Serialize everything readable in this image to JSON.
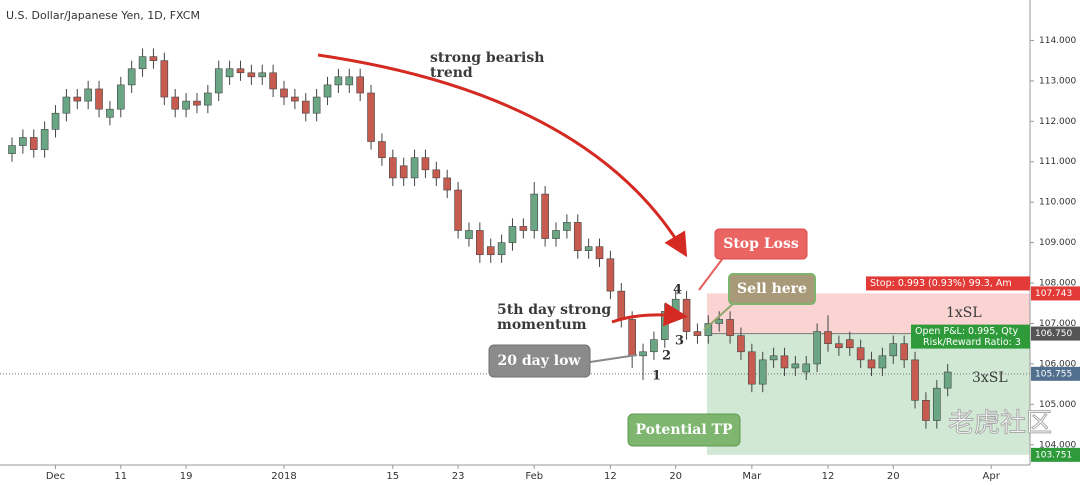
{
  "chart_data": {
    "type": "candlestick",
    "title": "U.S. Dollar/Japanese Yen, 1D, FXCM",
    "categories": [
      null,
      null,
      null,
      null,
      "Dec",
      null,
      null,
      null,
      null,
      null,
      "11",
      null,
      null,
      null,
      null,
      null,
      "19",
      null,
      null,
      null,
      null,
      null,
      null,
      null,
      null,
      "2018",
      null,
      null,
      null,
      null,
      null,
      null,
      null,
      null,
      null,
      "15",
      null,
      null,
      null,
      null,
      null,
      "23",
      null,
      null,
      null,
      null,
      null,
      null,
      "Feb",
      null,
      null,
      null,
      null,
      null,
      null,
      "12",
      null,
      null,
      null,
      null,
      null,
      "20",
      null,
      null,
      null,
      null,
      null,
      null,
      "Mar",
      null,
      null,
      null,
      null,
      null,
      null,
      "12",
      null,
      null,
      null,
      null,
      null,
      "20",
      null,
      null,
      null,
      null,
      null,
      null,
      null,
      null,
      "Apr"
    ],
    "open": [
      111.2,
      111.4,
      111.6,
      111.3,
      111.8,
      112.2,
      112.6,
      112.5,
      112.8,
      112.1,
      112.3,
      112.9,
      113.3,
      113.6,
      113.5,
      112.6,
      112.3,
      112.5,
      112.4,
      112.7,
      113.1,
      113.3,
      113.2,
      113.1,
      113.2,
      112.8,
      112.6,
      112.5,
      112.2,
      112.6,
      112.9,
      112.9,
      113.1,
      112.7,
      111.5,
      111.1,
      110.9,
      110.6,
      111.1,
      110.8,
      110.6,
      110.3,
      109.1,
      109.3,
      108.9,
      108.7,
      109.0,
      109.4,
      109.3,
      110.2,
      109.1,
      109.3,
      109.5,
      108.8,
      108.9,
      108.6,
      107.8,
      107.1,
      106.2,
      106.3,
      106.6,
      107.3,
      107.6,
      106.8,
      106.7,
      107.0,
      107.1,
      106.7,
      106.3,
      105.5,
      106.1,
      106.2,
      105.9,
      105.8,
      106.0,
      106.8,
      106.5,
      106.6,
      106.4,
      106.1,
      105.9,
      106.2,
      106.5,
      106.1,
      105.1,
      104.6,
      105.4,
      null,
      null,
      null,
      null
    ],
    "high": [
      111.6,
      111.8,
      111.8,
      112.0,
      112.4,
      112.8,
      112.8,
      113.0,
      113.0,
      112.5,
      113.1,
      113.5,
      113.8,
      113.8,
      113.7,
      112.8,
      112.7,
      112.7,
      112.9,
      113.5,
      113.5,
      113.5,
      113.4,
      113.4,
      113.4,
      113.0,
      112.8,
      112.7,
      112.8,
      113.1,
      113.3,
      113.3,
      113.3,
      112.9,
      111.7,
      111.3,
      111.1,
      111.3,
      111.3,
      111.0,
      110.8,
      110.5,
      109.5,
      109.5,
      109.1,
      109.2,
      109.6,
      109.6,
      110.5,
      110.4,
      109.5,
      109.7,
      109.7,
      109.1,
      109.1,
      108.8,
      108.0,
      107.3,
      106.5,
      106.8,
      107.5,
      107.8,
      107.8,
      107.0,
      107.2,
      107.3,
      107.3,
      106.9,
      106.5,
      106.3,
      106.4,
      106.4,
      106.2,
      106.2,
      107.0,
      107.2,
      106.7,
      106.8,
      106.6,
      106.3,
      106.4,
      106.7,
      106.7,
      106.3,
      105.3,
      105.6,
      106.0,
      null,
      null,
      null,
      null
    ],
    "low": [
      111.0,
      111.2,
      111.1,
      111.1,
      111.6,
      112.0,
      112.3,
      112.3,
      112.1,
      111.9,
      112.1,
      112.7,
      113.1,
      113.3,
      112.4,
      112.1,
      112.1,
      112.2,
      112.2,
      112.5,
      112.9,
      113.0,
      112.9,
      112.9,
      112.6,
      112.4,
      112.3,
      112.0,
      112.0,
      112.4,
      112.7,
      112.7,
      112.5,
      111.3,
      110.9,
      110.4,
      110.4,
      110.4,
      110.6,
      110.4,
      110.1,
      109.1,
      108.9,
      108.5,
      108.5,
      108.5,
      108.8,
      109.1,
      109.1,
      108.9,
      108.9,
      109.1,
      108.6,
      108.6,
      108.4,
      107.6,
      106.9,
      105.9,
      105.6,
      106.1,
      106.4,
      107.1,
      106.6,
      106.5,
      106.5,
      106.8,
      106.5,
      106.1,
      105.3,
      105.3,
      105.9,
      105.7,
      105.7,
      105.6,
      105.8,
      106.3,
      106.2,
      106.2,
      105.9,
      105.7,
      105.7,
      106.0,
      105.9,
      104.9,
      104.4,
      104.4,
      105.2,
      null,
      null,
      null,
      null
    ],
    "close": [
      111.4,
      111.6,
      111.3,
      111.8,
      112.2,
      112.6,
      112.5,
      112.8,
      112.3,
      112.3,
      112.9,
      113.3,
      113.6,
      113.5,
      112.6,
      112.3,
      112.5,
      112.4,
      112.7,
      113.3,
      113.3,
      113.2,
      113.1,
      113.2,
      112.8,
      112.6,
      112.5,
      112.2,
      112.6,
      112.9,
      113.1,
      113.1,
      112.7,
      111.5,
      111.1,
      110.6,
      110.6,
      111.1,
      110.8,
      110.6,
      110.3,
      109.3,
      109.3,
      108.7,
      108.7,
      109.0,
      109.4,
      109.3,
      110.2,
      109.1,
      109.3,
      109.5,
      108.8,
      108.9,
      108.6,
      107.8,
      107.1,
      106.2,
      106.3,
      106.6,
      107.3,
      107.6,
      106.8,
      106.7,
      107.0,
      107.1,
      106.7,
      106.3,
      105.5,
      106.1,
      106.2,
      105.9,
      106.0,
      106.0,
      106.8,
      106.5,
      106.4,
      106.4,
      106.1,
      105.9,
      106.2,
      106.5,
      106.1,
      105.1,
      104.6,
      105.4,
      105.8,
      null,
      null,
      null,
      null
    ],
    "up_color": "#6aa684",
    "down_color": "#c75b50",
    "ylim": [
      103.5,
      115
    ],
    "yticks": [
      {
        "value": 104,
        "label": "104.000"
      },
      {
        "value": 105,
        "label": "105.000"
      },
      {
        "value": 106,
        "label": "106.000"
      },
      {
        "value": 107,
        "label": "107.000"
      },
      {
        "value": 108,
        "label": "108.000"
      },
      {
        "value": 109,
        "label": "109.000"
      },
      {
        "value": 110,
        "label": "110.000"
      },
      {
        "value": 111,
        "label": "111.000"
      },
      {
        "value": 112,
        "label": "112.000"
      },
      {
        "value": 113,
        "label": "113.000"
      },
      {
        "value": 114,
        "label": "114.000"
      }
    ],
    "grid": false,
    "current_price": {
      "value": 105.755,
      "label": "105.755",
      "color": "#51708f"
    },
    "position": {
      "stop": {
        "value": 107.743,
        "label": "107.743",
        "color": "#e23a36"
      },
      "entry": {
        "value": 106.75,
        "label": "106.750",
        "color": "#555555"
      },
      "target": {
        "value": 103.751,
        "label": "103.751",
        "color": "#2f9a3a"
      },
      "stop_text": "Stop: 0.993 (0.93%) 99.3, Am",
      "pnl_text": "Open P&L: 0.995, Qty",
      "ratio_text": "Risk/Reward Ratio: 3"
    },
    "annotations": [
      "strong bearish",
      "trend",
      "Stop Loss",
      "Sell here",
      "5th day strong",
      "momentum",
      "20 day low",
      "Potential TP",
      "1xSL",
      "3xSL",
      "1",
      "2",
      "3",
      "4",
      "老虎社区"
    ]
  }
}
